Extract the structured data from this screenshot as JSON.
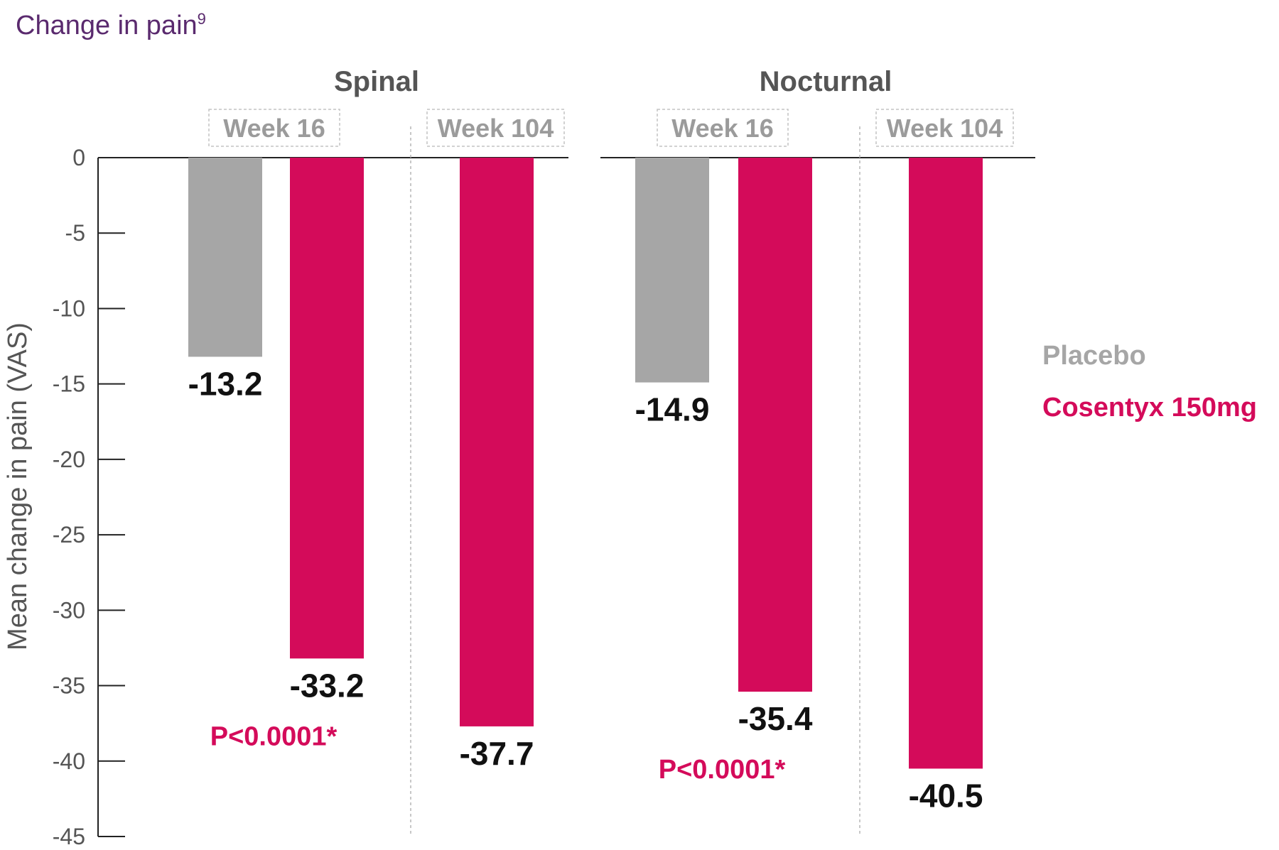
{
  "colors": {
    "placebo": "#a6a6a6",
    "cosentyx": "#d40b5a",
    "title": "#5a2a6e",
    "axis": "#222222",
    "text": "#555555"
  },
  "chart_data": {
    "type": "bar",
    "title": "Change in pain",
    "title_superscript": "9",
    "ylabel": "Mean change in pain (VAS)",
    "ylim": [
      -45,
      0
    ],
    "yticks": [
      0,
      -5,
      -10,
      -15,
      -20,
      -25,
      -30,
      -35,
      -40,
      -45
    ],
    "grid": false,
    "legend_position": "right",
    "legend": [
      {
        "name": "Placebo",
        "color_key": "placebo"
      },
      {
        "name": "Cosentyx 150mg",
        "color_key": "cosentyx"
      }
    ],
    "groups": [
      {
        "title": "Spinal",
        "subgroups": [
          {
            "label": "Week 16",
            "bars": [
              {
                "series": "Placebo",
                "value": -13.2,
                "label": "-13.2"
              },
              {
                "series": "Cosentyx 150mg",
                "value": -33.2,
                "label": "-33.2"
              }
            ],
            "annotation": "P<0.0001*"
          },
          {
            "label": "Week 104",
            "bars": [
              {
                "series": "Cosentyx 150mg",
                "value": -37.7,
                "label": "-37.7"
              }
            ]
          }
        ]
      },
      {
        "title": "Nocturnal",
        "subgroups": [
          {
            "label": "Week 16",
            "bars": [
              {
                "series": "Placebo",
                "value": -14.9,
                "label": "-14.9"
              },
              {
                "series": "Cosentyx 150mg",
                "value": -35.4,
                "label": "-35.4"
              }
            ],
            "annotation": "P<0.0001*"
          },
          {
            "label": "Week 104",
            "bars": [
              {
                "series": "Cosentyx 150mg",
                "value": -40.5,
                "label": "-40.5"
              }
            ]
          }
        ]
      }
    ]
  }
}
